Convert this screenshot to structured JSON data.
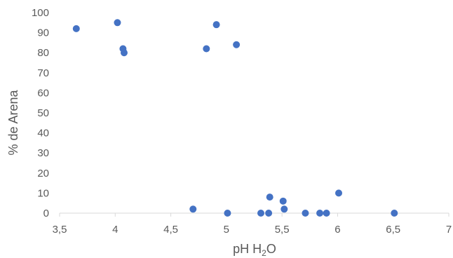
{
  "chart_data": {
    "type": "scatter",
    "xlabel": "pH H",
    "xlabel_subscript": "2",
    "xlabel_suffix": "O",
    "ylabel": "% de Arena",
    "xlim": [
      3.5,
      7
    ],
    "ylim": [
      0,
      100
    ],
    "x_ticks": [
      3.5,
      4,
      4.5,
      5,
      5.5,
      6,
      6.5,
      7
    ],
    "x_tick_labels": [
      "3,5",
      "4",
      "4,5",
      "5",
      "5,5",
      "6",
      "6,5",
      "7"
    ],
    "y_ticks": [
      0,
      10,
      20,
      30,
      40,
      50,
      60,
      70,
      80,
      90,
      100
    ],
    "y_tick_labels": [
      "0",
      "10",
      "20",
      "30",
      "40",
      "50",
      "60",
      "70",
      "80",
      "90",
      "100"
    ],
    "grid": false,
    "legend": "none",
    "marker_color": "#4472C4",
    "axis_color": "#D9D9D9",
    "text_color": "#595959",
    "series": [
      {
        "points": [
          {
            "x": 3.65,
            "y": 92
          },
          {
            "x": 4.02,
            "y": 95
          },
          {
            "x": 4.07,
            "y": 82
          },
          {
            "x": 4.08,
            "y": 80
          },
          {
            "x": 4.7,
            "y": 2
          },
          {
            "x": 4.82,
            "y": 82
          },
          {
            "x": 4.91,
            "y": 94
          },
          {
            "x": 5.01,
            "y": 0
          },
          {
            "x": 5.09,
            "y": 84
          },
          {
            "x": 5.31,
            "y": 0
          },
          {
            "x": 5.38,
            "y": 0
          },
          {
            "x": 5.39,
            "y": 8
          },
          {
            "x": 5.51,
            "y": 6
          },
          {
            "x": 5.52,
            "y": 2
          },
          {
            "x": 5.71,
            "y": 0
          },
          {
            "x": 5.84,
            "y": 0
          },
          {
            "x": 5.9,
            "y": 0
          },
          {
            "x": 6.01,
            "y": 10
          },
          {
            "x": 6.51,
            "y": 0
          }
        ]
      }
    ]
  }
}
